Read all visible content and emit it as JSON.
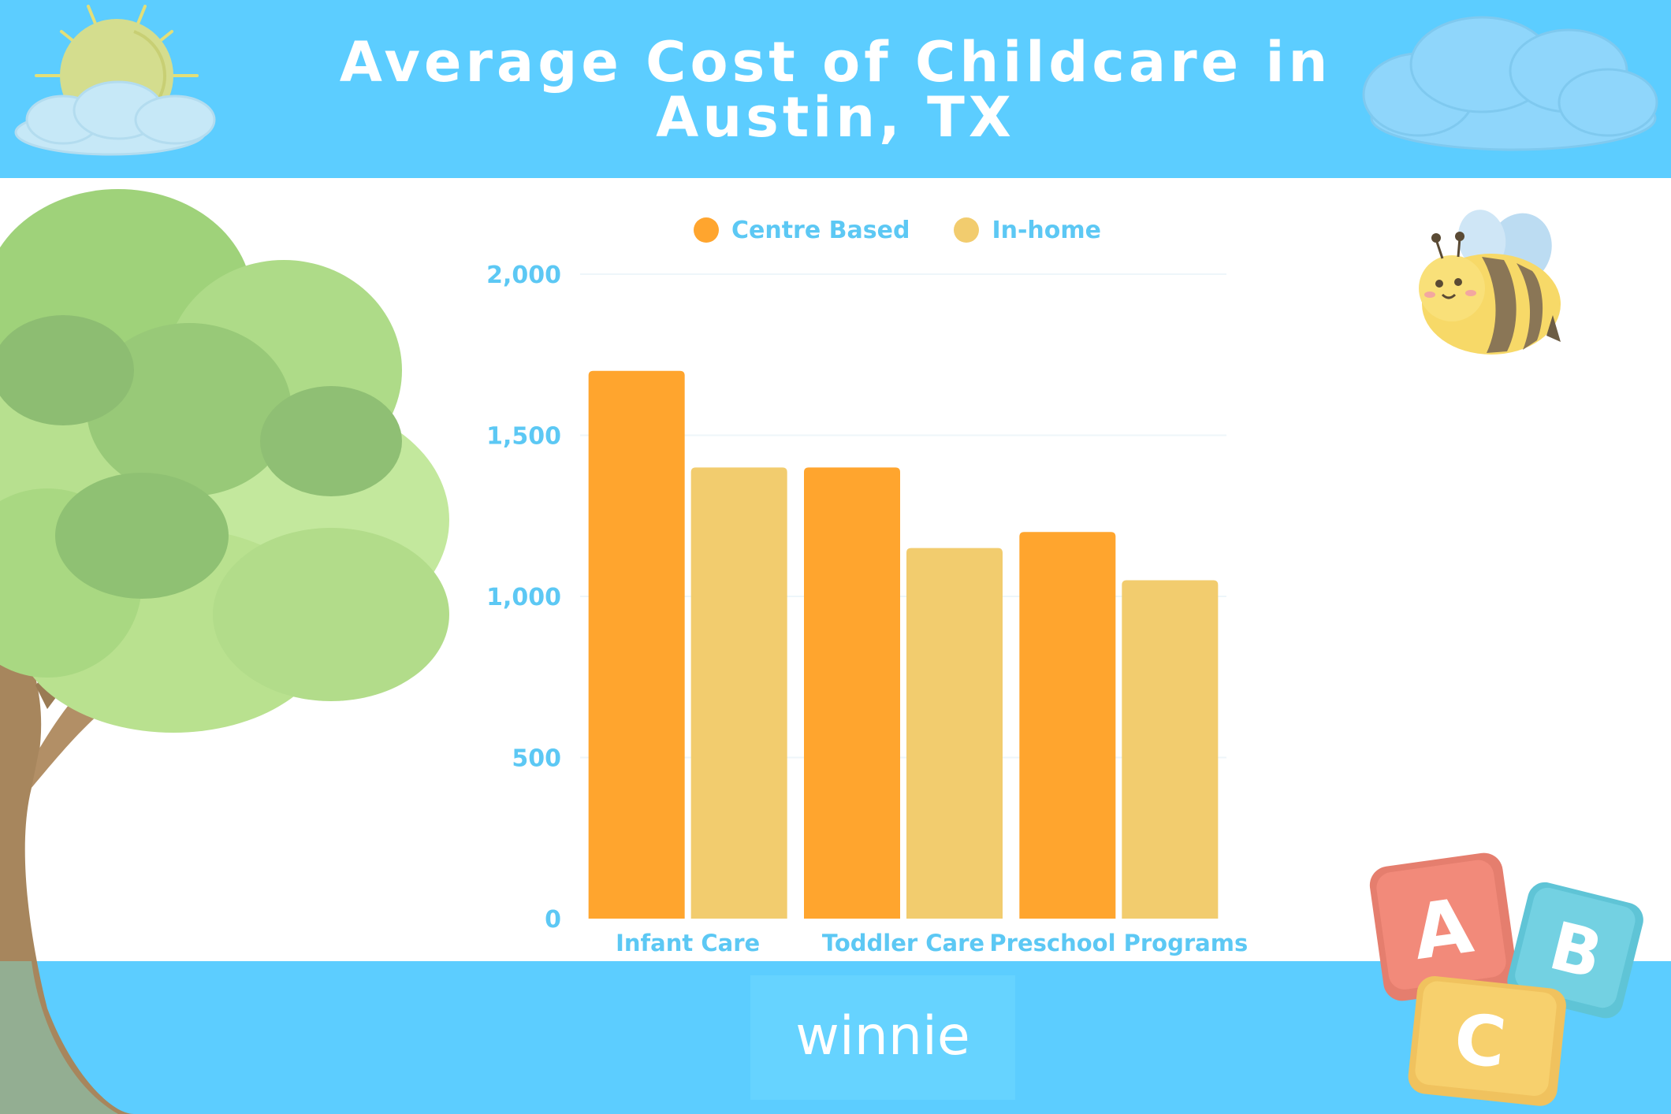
{
  "header": {
    "title_line1": "Average Cost of Childcare in",
    "title_line2": "Austin, TX"
  },
  "footer": {
    "brand": "winnie"
  },
  "colors": {
    "sky": "#5ccdff",
    "centre_based": "#ffa52e",
    "in_home": "#f2cc6e",
    "axis_text": "#5cc8f4"
  },
  "icons": [
    "sun-icon",
    "cloud-icon",
    "tree-icon",
    "bee-icon",
    "abc-blocks-icon"
  ],
  "chart_data": {
    "type": "bar",
    "categories": [
      "Infant Care",
      "Toddler Care",
      "Preschool Programs"
    ],
    "series": [
      {
        "name": "Centre Based",
        "values": [
          1700,
          1400,
          1200
        ]
      },
      {
        "name": "In-home",
        "values": [
          1400,
          1150,
          1050
        ]
      }
    ],
    "yticks": [
      "0",
      "500",
      "1,000",
      "1,500",
      "2,000"
    ],
    "ylim": [
      0,
      2000
    ],
    "grid": true,
    "legend": "top"
  }
}
